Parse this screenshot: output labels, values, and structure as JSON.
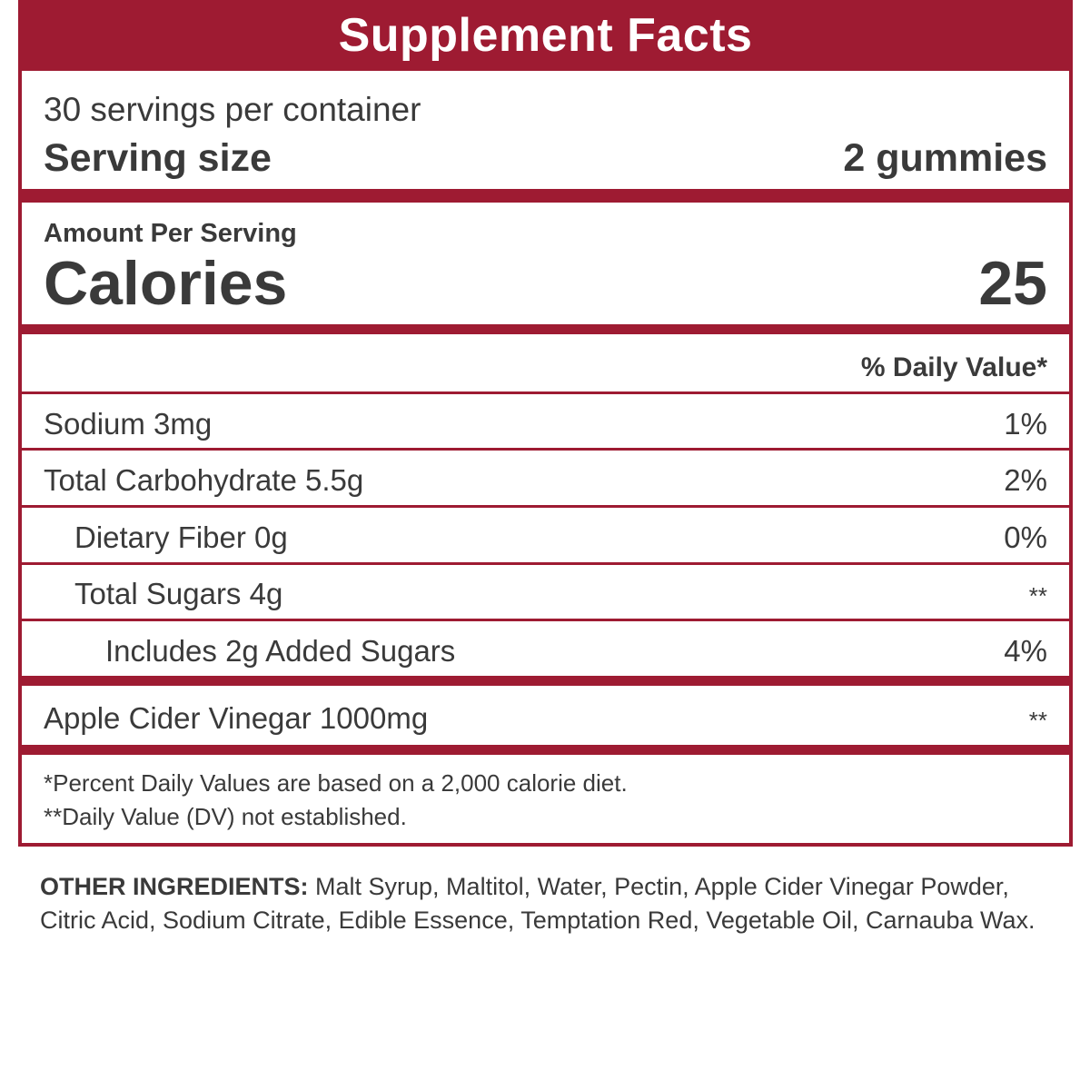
{
  "label": {
    "title": "Supplement Facts",
    "servings_per_container": "30 servings per container",
    "serving_size_label": "Serving size",
    "serving_size_value": "2 gummies",
    "amount_per_serving": "Amount Per Serving",
    "calories_label": "Calories",
    "calories_value": "25",
    "daily_value_header": "% Daily Value*",
    "nutrients": [
      {
        "label": "Sodium 3mg",
        "dv": "1%"
      },
      {
        "label": "Total Carbohydrate 5.5g",
        "dv": "2%"
      },
      {
        "label": "Dietary Fiber 0g",
        "dv": "0%"
      },
      {
        "label": "Total Sugars 4g",
        "dv": "**"
      },
      {
        "label": "Includes 2g Added Sugars",
        "dv": "4%"
      }
    ],
    "special": {
      "label": "Apple Cider Vinegar 1000mg",
      "dv": "**"
    },
    "footnotes": [
      "*Percent Daily Values are based on a 2,000 calorie diet.",
      "**Daily Value (DV) not established."
    ]
  },
  "ingredients": {
    "heading": "OTHER INGREDIENTS:",
    "text": " Malt Syrup, Maltitol, Water, Pectin, Apple Cider Vinegar Powder, Citric Acid, Sodium Citrate, Edible Essence, Temptation Red, Vegetable Oil, Carnauba Wax."
  },
  "colors": {
    "accent": "#9e1b32",
    "text": "#3a3a3a",
    "background": "#ffffff"
  }
}
